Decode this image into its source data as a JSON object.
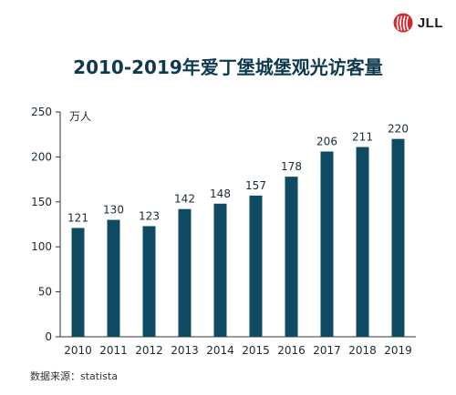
{
  "logo": {
    "text": "JLL"
  },
  "colors": {
    "bar": "#0f4a63",
    "text": "#1a2a33",
    "axis": "#333333",
    "title": "#0e3a50",
    "logo_red": "#d4262c"
  },
  "source": "数据来源：statista",
  "chart_data": {
    "type": "bar",
    "title": "2010-2019年爱丁堡城堡观光访客量",
    "xlabel": "",
    "ylabel": "万人",
    "ylim": [
      0,
      250
    ],
    "yticks": [
      0,
      50,
      100,
      150,
      200,
      250
    ],
    "categories": [
      "2010",
      "2011",
      "2012",
      "2013",
      "2014",
      "2015",
      "2016",
      "2017",
      "2018",
      "2019"
    ],
    "values": [
      121,
      130,
      123,
      142,
      148,
      157,
      178,
      206,
      211,
      220
    ],
    "grid": false,
    "legend": "none"
  }
}
